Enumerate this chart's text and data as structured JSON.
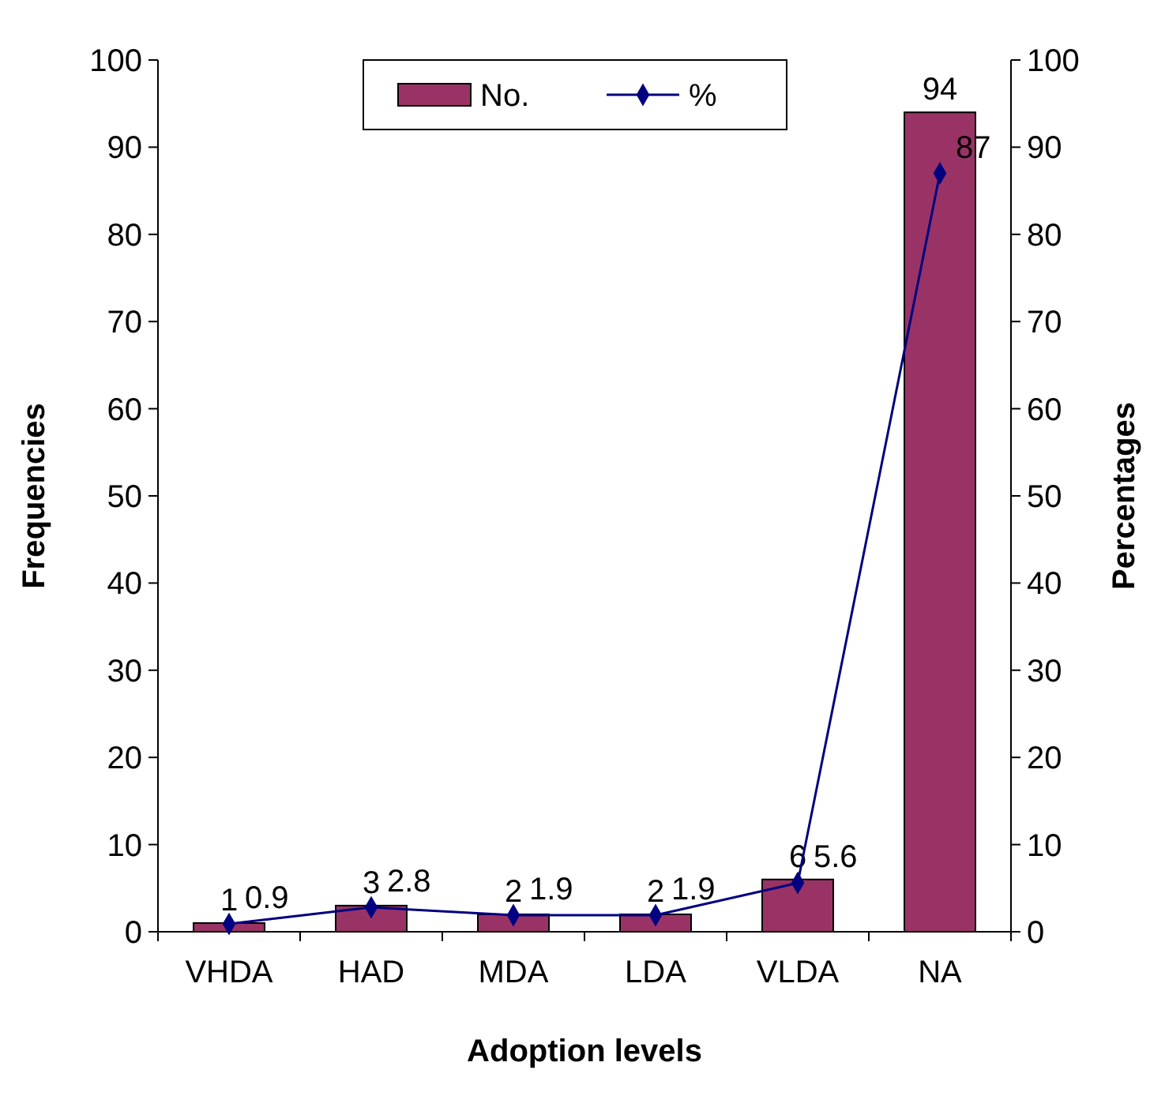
{
  "chart_data": {
    "type": "bar",
    "xlabel": "Adoption levels",
    "ylabel": "Frequencies",
    "y2label": "Percentages",
    "categories": [
      "VHDA",
      "HAD",
      "MDA",
      "LDA",
      "VLDA",
      "NA"
    ],
    "series": [
      {
        "name": "No.",
        "color": "#993366",
        "values": [
          1,
          3,
          2,
          2,
          6,
          94
        ]
      },
      {
        "name": "%",
        "type": "line",
        "axis": "y2",
        "color": "#000080",
        "values": [
          0.9,
          2.8,
          1.9,
          1.9,
          5.6,
          87
        ]
      }
    ],
    "ylim": [
      0,
      100
    ],
    "yticks": [
      0,
      10,
      20,
      30,
      40,
      50,
      60,
      70,
      80,
      90,
      100
    ],
    "y2lim": [
      0,
      100
    ],
    "y2ticks": [
      0,
      10,
      20,
      30,
      40,
      50,
      60,
      70,
      80,
      90,
      100
    ],
    "data_labels": true,
    "legend": "top",
    "grid": false,
    "marker": "diamond",
    "line_style": "solid"
  }
}
